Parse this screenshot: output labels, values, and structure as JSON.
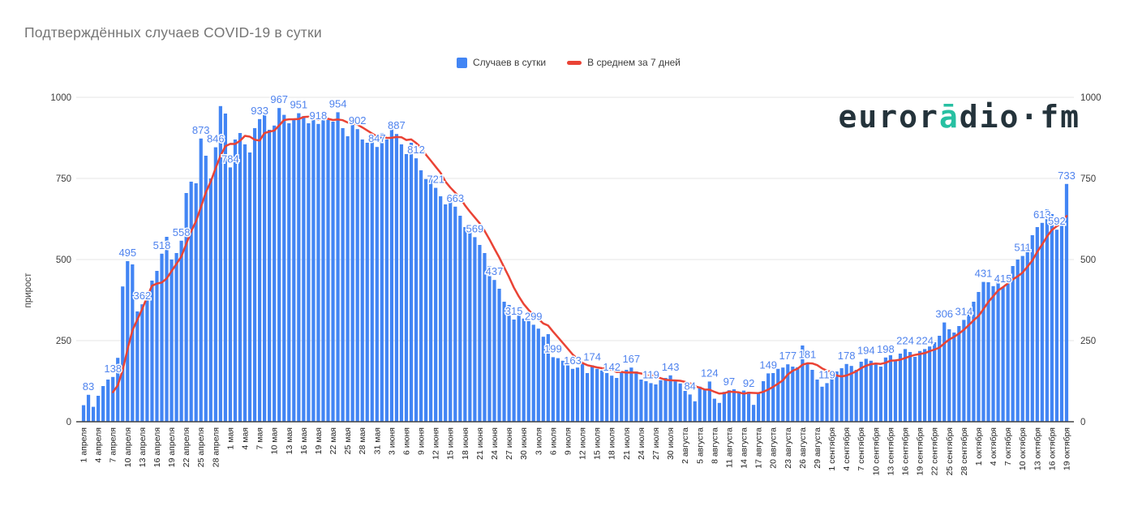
{
  "title": "Подтверждённых случаев COVID-19 в сутки",
  "legend": {
    "daily_label": "Случаев в сутки",
    "average_label": "В среднем за 7 дней"
  },
  "watermark": {
    "part1": "euror",
    "accent": "ā",
    "part2": "dio·fm"
  },
  "colors": {
    "bar": "#4285f4",
    "line": "#ea4335",
    "annotation": "#4f83ee",
    "grid": "#e6e6e6",
    "axis": "#424242",
    "tick_text": "#3c3c3c",
    "logo": "#24333b",
    "logo_accent": "#27c0a2"
  },
  "chart_data": {
    "type": "bar",
    "title": "Подтверждённых случаев COVID-19 в сутки",
    "xlabel": "",
    "ylabel": "прирост",
    "ylim": [
      0,
      1000
    ],
    "y_ticks": [
      0,
      250,
      500,
      750,
      1000
    ],
    "grid": true,
    "legend_position": "top",
    "x_start": "1 апреля",
    "x_end": "19 октября",
    "x_tick_labels": [
      "1 апреля",
      "4 апреля",
      "7 апреля",
      "10 апреля",
      "13 апреля",
      "16 апреля",
      "19 апреля",
      "22 апреля",
      "25 апреля",
      "28 апреля",
      "1 мая",
      "4 мая",
      "7 мая",
      "10 мая",
      "13 мая",
      "16 мая",
      "19 мая",
      "22 мая",
      "25 мая",
      "28 мая",
      "31 мая",
      "3 июня",
      "6 июня",
      "9 июня",
      "12 июня",
      "15 июня",
      "18 июня",
      "21 июня",
      "24 июня",
      "27 июня",
      "30 июня",
      "3 июля",
      "6 июля",
      "9 июля",
      "12 июля",
      "15 июля",
      "18 июля",
      "21 июля",
      "24 июля",
      "27 июля",
      "30 июля",
      "2 августа",
      "5 августа",
      "8 августа",
      "11 августа",
      "14 августа",
      "17 августа",
      "20 августа",
      "23 августа",
      "26 августа",
      "29 августа",
      "1 сентября",
      "4 сентября",
      "7 сентября",
      "10 сентября",
      "13 сентября",
      "16 сентября",
      "19 сентября",
      "22 сентября",
      "25 сентября",
      "28 сентября",
      "1 октября",
      "4 октября",
      "7 октября",
      "10 октября",
      "13 октября",
      "16 октября",
      "19 октября"
    ],
    "x_tick_step_days": 3,
    "series": [
      {
        "name": "Случаев в сутки",
        "type": "bar",
        "color": "#4285f4",
        "values": [
          51,
          83,
          46,
          80,
          110,
          130,
          138,
          197,
          417,
          495,
          485,
          340,
          362,
          400,
          435,
          465,
          518,
          570,
          500,
          520,
          558,
          705,
          740,
          735,
          873,
          820,
          750,
          846,
          973,
          950,
          784,
          870,
          890,
          855,
          830,
          905,
          933,
          946,
          900,
          913,
          967,
          946,
          920,
          935,
          951,
          942,
          920,
          930,
          918,
          945,
          930,
          925,
          954,
          905,
          880,
          915,
          902,
          870,
          860,
          885,
          847,
          890,
          870,
          905,
          887,
          855,
          825,
          860,
          812,
          775,
          748,
          760,
          721,
          695,
          670,
          685,
          663,
          635,
          600,
          585,
          569,
          545,
          520,
          480,
          437,
          410,
          370,
          360,
          315,
          330,
          318,
          310,
          299,
          287,
          262,
          270,
          199,
          196,
          188,
          175,
          163,
          167,
          180,
          150,
          174,
          163,
          158,
          150,
          142,
          135,
          152,
          160,
          167,
          155,
          130,
          125,
          119,
          115,
          128,
          135,
          143,
          126,
          118,
          95,
          84,
          63,
          108,
          100,
          124,
          71,
          58,
          92,
          97,
          100,
          92,
          96,
          92,
          52,
          89,
          125,
          149,
          150,
          163,
          167,
          177,
          170,
          168,
          235,
          181,
          160,
          130,
          108,
          119,
          142,
          155,
          165,
          178,
          172,
          160,
          185,
          194,
          188,
          178,
          170,
          198,
          205,
          190,
          210,
          224,
          215,
          200,
          218,
          224,
          232,
          245,
          265,
          306,
          285,
          275,
          295,
          314,
          345,
          370,
          400,
          431,
          430,
          418,
          440,
          415,
          455,
          480,
          500,
          511,
          545,
          575,
          600,
          613,
          655,
          640,
          592,
          607,
          733
        ]
      },
      {
        "name": "В среднем за 7 дней",
        "type": "line",
        "color": "#ea4335",
        "derived_from": "7-day trailing mean of daily series"
      }
    ],
    "annotations": [
      {
        "day": 1,
        "value": 83
      },
      {
        "day": 6,
        "value": 138
      },
      {
        "day": 9,
        "value": 495
      },
      {
        "day": 12,
        "value": 362
      },
      {
        "day": 16,
        "value": 518
      },
      {
        "day": 20,
        "value": 558
      },
      {
        "day": 24,
        "value": 873
      },
      {
        "day": 27,
        "value": 846
      },
      {
        "day": 30,
        "value": 784
      },
      {
        "day": 36,
        "value": 933
      },
      {
        "day": 40,
        "value": 967
      },
      {
        "day": 44,
        "value": 951
      },
      {
        "day": 48,
        "value": 918
      },
      {
        "day": 52,
        "value": 954
      },
      {
        "day": 56,
        "value": 902
      },
      {
        "day": 60,
        "value": 847
      },
      {
        "day": 64,
        "value": 887
      },
      {
        "day": 68,
        "value": 812
      },
      {
        "day": 72,
        "value": 721
      },
      {
        "day": 76,
        "value": 663
      },
      {
        "day": 80,
        "value": 569
      },
      {
        "day": 84,
        "value": 437
      },
      {
        "day": 88,
        "value": 315
      },
      {
        "day": 92,
        "value": 299
      },
      {
        "day": 96,
        "value": 199
      },
      {
        "day": 100,
        "value": 163
      },
      {
        "day": 104,
        "value": 174
      },
      {
        "day": 108,
        "value": 142
      },
      {
        "day": 112,
        "value": 167
      },
      {
        "day": 116,
        "value": 119
      },
      {
        "day": 120,
        "value": 143
      },
      {
        "day": 124,
        "value": 84
      },
      {
        "day": 128,
        "value": 124
      },
      {
        "day": 132,
        "value": 97
      },
      {
        "day": 136,
        "value": 92
      },
      {
        "day": 140,
        "value": 149
      },
      {
        "day": 144,
        "value": 177
      },
      {
        "day": 148,
        "value": 181
      },
      {
        "day": 152,
        "value": 119
      },
      {
        "day": 156,
        "value": 178
      },
      {
        "day": 160,
        "value": 194
      },
      {
        "day": 164,
        "value": 198
      },
      {
        "day": 168,
        "value": 224
      },
      {
        "day": 172,
        "value": 224
      },
      {
        "day": 176,
        "value": 306
      },
      {
        "day": 180,
        "value": 314
      },
      {
        "day": 184,
        "value": 431
      },
      {
        "day": 188,
        "value": 415
      },
      {
        "day": 192,
        "value": 511
      },
      {
        "day": 196,
        "value": 613
      },
      {
        "day": 199,
        "value": 592
      },
      {
        "day": 201,
        "value": 733
      }
    ]
  }
}
